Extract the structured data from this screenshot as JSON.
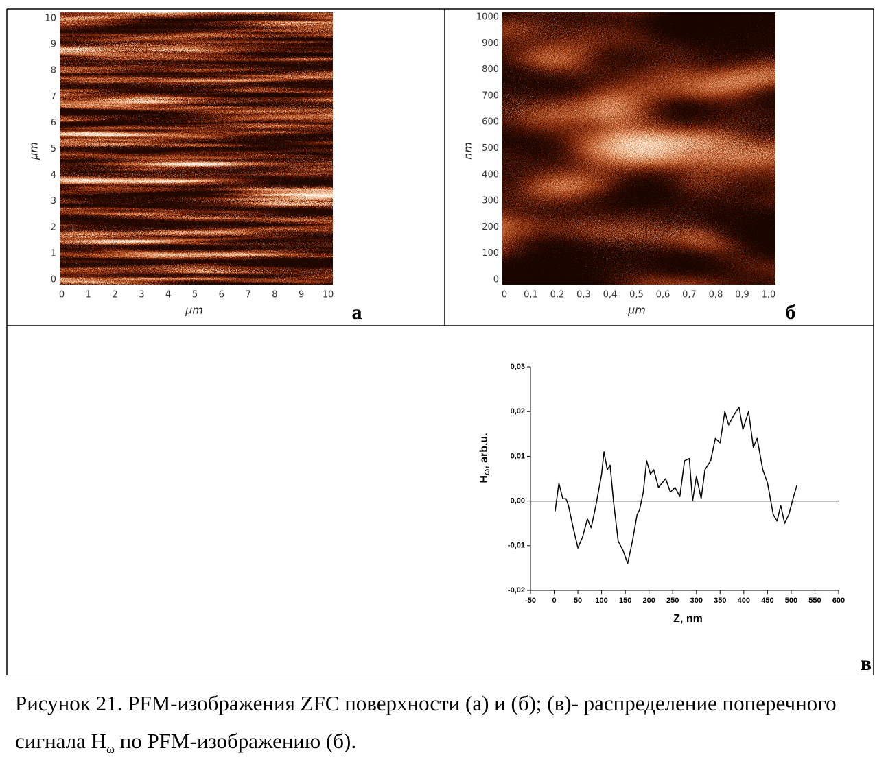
{
  "panels": [
    {
      "letter": "а",
      "xlabel": "μm",
      "ylabel": "μm",
      "xlim": [
        0,
        10
      ],
      "ylim": [
        0,
        10
      ],
      "xticks": [
        0,
        1,
        2,
        3,
        4,
        5,
        6,
        7,
        8,
        9,
        10
      ],
      "yticks": [
        0,
        1,
        2,
        3,
        4,
        5,
        6,
        7,
        8,
        9,
        10
      ]
    },
    {
      "letter": "б",
      "xlabel": "μm",
      "ylabel": "nm",
      "xlim": [
        0,
        1
      ],
      "ylim": [
        0,
        1000
      ],
      "xticks": [
        0,
        {
          "value": 0.1,
          "label": "0,1"
        },
        {
          "value": 0.2,
          "label": "0,2"
        },
        {
          "value": 0.3,
          "label": "0,3"
        },
        {
          "value": 0.4,
          "label": "0,4"
        },
        {
          "value": 0.5,
          "label": "0,5"
        },
        {
          "value": 0.6,
          "label": "0,6"
        },
        {
          "value": 0.7,
          "label": "0,7"
        },
        {
          "value": 0.8,
          "label": "0,8"
        },
        {
          "value": 0.9,
          "label": "0,9"
        },
        {
          "value": 1,
          "label": "1,0"
        }
      ],
      "yticks": [
        0,
        100,
        200,
        300,
        400,
        500,
        600,
        700,
        800,
        900,
        1000
      ]
    }
  ],
  "chart_data": {
    "type": "line",
    "panel_label": "в",
    "xlabel": "Z, nm",
    "ylabel": [
      "H",
      "ω",
      ", arb.u."
    ],
    "color": "#000000",
    "reference_line": 0,
    "xlim": [
      -50,
      600
    ],
    "ylim": [
      -0.02,
      0.03
    ],
    "xticks": [
      -50,
      0,
      50,
      100,
      150,
      200,
      250,
      300,
      350,
      400,
      450,
      500,
      550,
      600
    ],
    "yticks": [
      {
        "value": -0.02,
        "label": "-0,02"
      },
      {
        "value": -0.01,
        "label": "-0,01"
      },
      {
        "value": 0,
        "label": "0,00"
      },
      {
        "value": 0.01,
        "label": "0,01"
      },
      {
        "value": 0.02,
        "label": "0,02"
      },
      {
        "value": 0.03,
        "label": "0,03"
      }
    ],
    "x": [
      2,
      10,
      18,
      25,
      30,
      40,
      50,
      60,
      70,
      78,
      88,
      100,
      105,
      112,
      118,
      125,
      135,
      145,
      155,
      165,
      175,
      180,
      188,
      195,
      203,
      210,
      220,
      235,
      245,
      255,
      265,
      275,
      285,
      292,
      300,
      310,
      318,
      330,
      340,
      350,
      360,
      368,
      378,
      390,
      398,
      410,
      420,
      428,
      440,
      450,
      462,
      470,
      478,
      486,
      495,
      505,
      512
    ],
    "values": [
      -0.0023,
      0.004,
      0.0005,
      0.0005,
      -0.001,
      -0.006,
      -0.0105,
      -0.008,
      -0.004,
      -0.006,
      -0.001,
      0.006,
      0.011,
      0.007,
      0.008,
      0.0,
      -0.009,
      -0.011,
      -0.014,
      -0.009,
      -0.003,
      -0.002,
      0.002,
      0.009,
      0.006,
      0.007,
      0.003,
      0.005,
      0.002,
      0.003,
      0.001,
      0.009,
      0.0095,
      0.0,
      0.0055,
      0.0005,
      0.007,
      0.009,
      0.014,
      0.013,
      0.02,
      0.017,
      0.019,
      0.021,
      0.016,
      0.02,
      0.012,
      0.014,
      0.007,
      0.004,
      -0.003,
      -0.0045,
      -0.001,
      -0.005,
      -0.003,
      0.001,
      0.0035
    ]
  },
  "caption": {
    "text": "Рисунок 21. PFM-изображения ZFC поверхности (а) и (б); (в)- распределение поперечного сигнала  H",
    "subscript": "ω",
    "text_end": " по  PFM-изображению (б)."
  }
}
